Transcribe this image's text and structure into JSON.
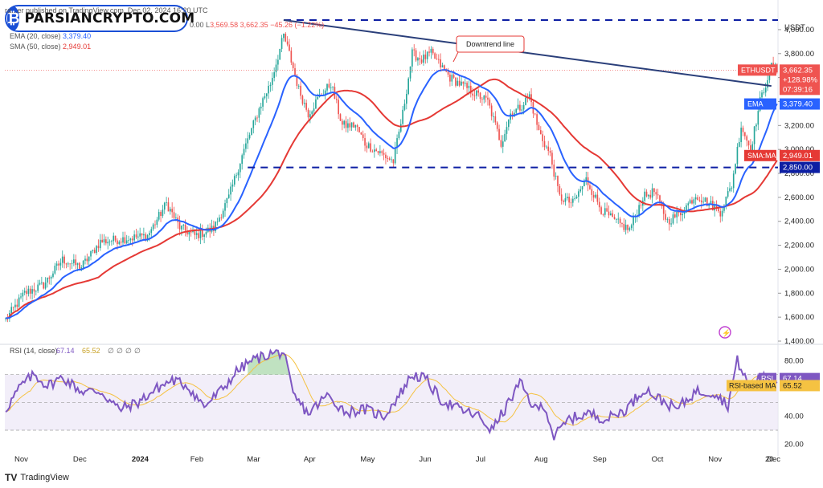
{
  "header": {
    "publisher": "ra...er published on TradingView.com, Dec 02, 2024 16:20 UTC",
    "ohlc_tail": "0.00",
    "low_label": "L",
    "low_value": "3,569.58",
    "close_value": "3,662.35",
    "change": "−45.26 (−1.22%)",
    "ema_legend": "EMA (20, close)",
    "ema_value": "3,379.40",
    "sma_legend": "SMA (50, close)",
    "sma_value": "2,949.01"
  },
  "logo": {
    "text": "PARSIANCRYPTO.COM",
    "glyph": "₿"
  },
  "currency": "USDT",
  "footer": {
    "brand": "TradingView",
    "brand_mark": "TV"
  },
  "colors": {
    "up": "#26a69a",
    "down": "#ef5350",
    "ema": "#2962ff",
    "sma": "#e53935",
    "trend": "#2a3f7a",
    "rsi": "#7e57c2",
    "rsi_ma": "#f5c242",
    "level": "#0d1fa3"
  },
  "chart_data": [
    {
      "type": "candlestick",
      "title": "ETHUSDT",
      "ylabel": "USDT",
      "ylim": [
        1400,
        4100
      ],
      "y_ticks": [
        1400,
        1600,
        1800,
        2000,
        2200,
        2400,
        2600,
        2800,
        3000,
        3200,
        3400,
        3600,
        3800,
        4000
      ],
      "y_tick_labels": [
        "1,400.00",
        "1,600.00",
        "1,800.00",
        "2,000.00",
        "2,200.00",
        "2,400.00",
        "2,600.00",
        "2,800.00",
        "3,000.00",
        "3,200.00",
        "3,400.00",
        "3,600.00",
        "3,800.00",
        "4,000.00"
      ],
      "x_ticks": [
        "Nov",
        "Dec",
        "2024",
        "Feb",
        "Mar",
        "Apr",
        "May",
        "Jun",
        "Jul",
        "Aug",
        "Sep",
        "Oct",
        "Nov",
        "Dec",
        "20"
      ],
      "close_anchors": [
        [
          0,
          1580
        ],
        [
          10,
          1800
        ],
        [
          20,
          1870
        ],
        [
          30,
          2080
        ],
        [
          40,
          2020
        ],
        [
          50,
          2230
        ],
        [
          60,
          2250
        ],
        [
          75,
          2280
        ],
        [
          85,
          2550
        ],
        [
          92,
          2350
        ],
        [
          100,
          2280
        ],
        [
          110,
          2340
        ],
        [
          118,
          2600
        ],
        [
          125,
          2950
        ],
        [
          135,
          3380
        ],
        [
          140,
          3550
        ],
        [
          147,
          3950
        ],
        [
          150,
          3800
        ],
        [
          155,
          3500
        ],
        [
          160,
          3300
        ],
        [
          165,
          3420
        ],
        [
          172,
          3550
        ],
        [
          178,
          3200
        ],
        [
          185,
          3200
        ],
        [
          190,
          3050
        ],
        [
          195,
          3000
        ],
        [
          205,
          2900
        ],
        [
          210,
          3300
        ],
        [
          215,
          3800
        ],
        [
          220,
          3750
        ],
        [
          225,
          3800
        ],
        [
          235,
          3600
        ],
        [
          245,
          3500
        ],
        [
          255,
          3400
        ],
        [
          262,
          3050
        ],
        [
          267,
          3300
        ],
        [
          272,
          3350
        ],
        [
          277,
          3450
        ],
        [
          282,
          3150
        ],
        [
          288,
          2950
        ],
        [
          293,
          2600
        ],
        [
          300,
          2550
        ],
        [
          307,
          2750
        ],
        [
          315,
          2500
        ],
        [
          322,
          2400
        ],
        [
          330,
          2330
        ],
        [
          337,
          2600
        ],
        [
          343,
          2650
        ],
        [
          350,
          2400
        ],
        [
          357,
          2470
        ],
        [
          365,
          2620
        ],
        [
          372,
          2550
        ],
        [
          378,
          2480
        ],
        [
          384,
          2700
        ],
        [
          389,
          3200
        ],
        [
          394,
          3000
        ],
        [
          399,
          3400
        ],
        [
          405,
          3700
        ],
        [
          408,
          3660
        ]
      ],
      "candle_count": 409,
      "series": [
        {
          "name": "EMA (20, close)",
          "last": 3379.4
        },
        {
          "name": "SMA (50, close)",
          "last": 2949.01
        }
      ],
      "levels": [
        {
          "name": "resistance",
          "value": 4080
        },
        {
          "name": "support",
          "value": 2850,
          "label": "2,850.00"
        }
      ],
      "trendline": {
        "from": [
          147,
          4080
        ],
        "to": [
          405,
          3530
        ],
        "label": "Downtrend line"
      },
      "price_labels": [
        {
          "name": "ETHUSDT",
          "value": 3662.35,
          "lines": [
            "3,662.35",
            "+128.98%",
            "07:39:16"
          ]
        },
        {
          "name": "EMA",
          "value": 3379.4,
          "text": "3,379.40"
        },
        {
          "name": "SMA:MA",
          "value": 2949.01,
          "text": "2,949.01"
        }
      ]
    },
    {
      "type": "line",
      "title": "RSI (14, close)",
      "legend_values": [
        "67.14",
        "65.52",
        "∅",
        "∅",
        "∅",
        "∅"
      ],
      "ylim": [
        15,
        90
      ],
      "y_ticks": [
        20,
        40,
        60,
        80
      ],
      "y_tick_labels": [
        "20.00",
        "40.00",
        "60.00",
        "80.00"
      ],
      "band": [
        30,
        70
      ],
      "rsi_anchors": [
        [
          0,
          45
        ],
        [
          8,
          62
        ],
        [
          15,
          70
        ],
        [
          22,
          62
        ],
        [
          30,
          68
        ],
        [
          40,
          58
        ],
        [
          50,
          58
        ],
        [
          60,
          45
        ],
        [
          70,
          50
        ],
        [
          80,
          60
        ],
        [
          88,
          66
        ],
        [
          96,
          62
        ],
        [
          105,
          47
        ],
        [
          115,
          60
        ],
        [
          122,
          72
        ],
        [
          130,
          80
        ],
        [
          140,
          85
        ],
        [
          147,
          86
        ],
        [
          152,
          55
        ],
        [
          160,
          42
        ],
        [
          170,
          55
        ],
        [
          180,
          43
        ],
        [
          190,
          45
        ],
        [
          200,
          40
        ],
        [
          208,
          55
        ],
        [
          215,
          70
        ],
        [
          222,
          67
        ],
        [
          230,
          52
        ],
        [
          240,
          45
        ],
        [
          250,
          40
        ],
        [
          257,
          30
        ],
        [
          264,
          45
        ],
        [
          272,
          64
        ],
        [
          280,
          45
        ],
        [
          285,
          48
        ],
        [
          290,
          25
        ],
        [
          298,
          38
        ],
        [
          308,
          42
        ],
        [
          318,
          38
        ],
        [
          328,
          45
        ],
        [
          338,
          60
        ],
        [
          345,
          53
        ],
        [
          355,
          45
        ],
        [
          365,
          58
        ],
        [
          375,
          57
        ],
        [
          382,
          48
        ],
        [
          387,
          80
        ],
        [
          393,
          62
        ],
        [
          400,
          68
        ],
        [
          405,
          65
        ],
        [
          408,
          67
        ]
      ],
      "series": [
        {
          "name": "RSI",
          "last": 67.14,
          "text": "67.14"
        },
        {
          "name": "RSI-based MA",
          "last": 65.52,
          "text": "65.52"
        }
      ]
    }
  ]
}
